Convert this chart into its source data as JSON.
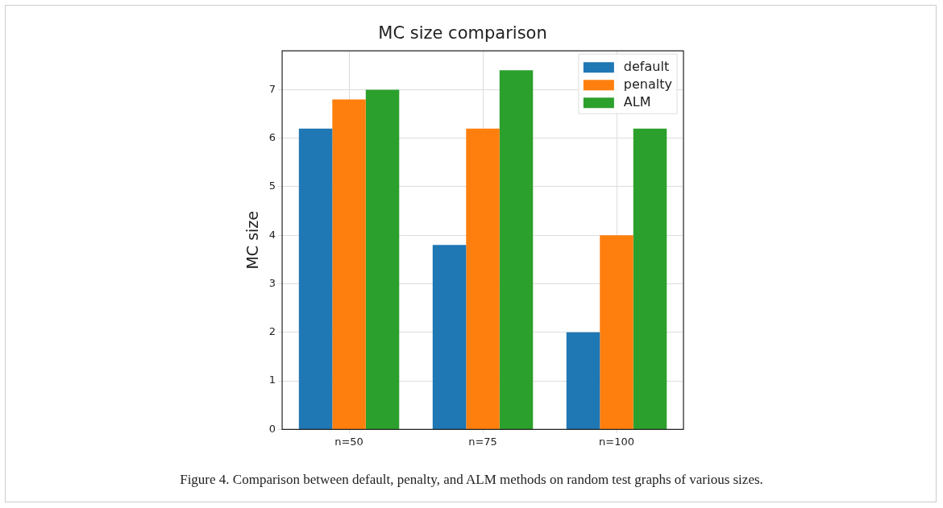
{
  "chart_data": {
    "type": "bar",
    "title": "MC size comparison",
    "ylabel": "MC size",
    "categories": [
      "n=50",
      "n=75",
      "n=100"
    ],
    "series": [
      {
        "name": "default",
        "color": "#1f77b4",
        "values": [
          6.2,
          3.8,
          2.0
        ]
      },
      {
        "name": "penalty",
        "color": "#ff7f0e",
        "values": [
          6.8,
          6.2,
          4.0
        ]
      },
      {
        "name": "ALM",
        "color": "#2ca02c",
        "values": [
          7.0,
          7.4,
          6.2
        ]
      }
    ],
    "ylim": [
      0,
      7.8
    ],
    "yticks": [
      0,
      1,
      2,
      3,
      4,
      5,
      6,
      7
    ],
    "grid": true,
    "legend": "top right",
    "annotations": [
      "Figure 4. Comparison between default, penalty, and ALM methods on random test graphs of various sizes."
    ]
  }
}
